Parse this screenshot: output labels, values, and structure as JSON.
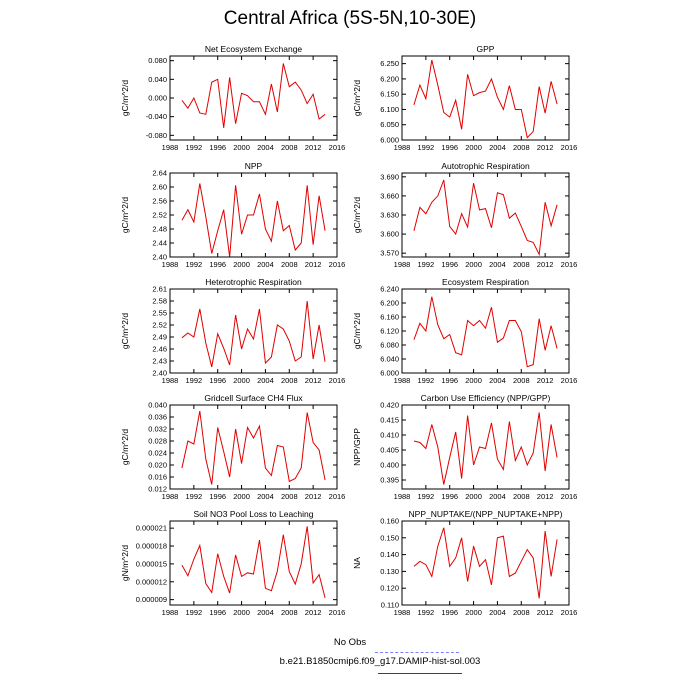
{
  "title": "Central Africa (5S-5N,10-30E)",
  "colors": {
    "model": "#e00000",
    "obs": "#8080ff"
  },
  "legend": [
    {
      "label": "No Obs",
      "color": "#8080ff",
      "style": "dashed"
    },
    {
      "label": "b.e21.B1850cmip6.f09_g17.DAMIP-hist-sol.003",
      "color": "#e00000",
      "style": "solid"
    }
  ],
  "chart_data": [
    {
      "type": "line",
      "title": "Net Ecosystem Exchange",
      "ylabel": "gC/m^2/d",
      "xlim": [
        1988,
        2016
      ],
      "ylim": [
        -0.09,
        0.09
      ],
      "xticks": [
        "1988",
        "1992",
        "1996",
        "2000",
        "2004",
        "2008",
        "2012",
        "2016"
      ],
      "yticks": [
        "-0.080",
        "-0.040",
        "0.000",
        "0.040",
        "0.080"
      ],
      "x": [
        1990,
        1991,
        1992,
        1993,
        1994,
        1995,
        1996,
        1997,
        1998,
        1999,
        2000,
        2001,
        2002,
        2003,
        2004,
        2005,
        2006,
        2007,
        2008,
        2009,
        2010,
        2011,
        2012,
        2013,
        2014
      ],
      "series": [
        {
          "values": [
            -0.005,
            -0.022,
            0.0,
            -0.032,
            -0.035,
            0.034,
            0.04,
            -0.064,
            0.044,
            -0.055,
            0.01,
            0.005,
            -0.008,
            -0.008,
            -0.035,
            0.03,
            -0.03,
            0.074,
            0.024,
            0.034,
            0.017,
            -0.012,
            0.008,
            -0.045,
            -0.035
          ]
        }
      ]
    },
    {
      "type": "line",
      "title": "GPP",
      "ylabel": "gC/m^2/d",
      "xlim": [
        1988,
        2016
      ],
      "ylim": [
        6.0,
        6.275
      ],
      "xticks": [
        "1988",
        "1992",
        "1996",
        "2000",
        "2004",
        "2008",
        "2012",
        "2016"
      ],
      "yticks": [
        "6.000",
        "6.050",
        "6.100",
        "6.150",
        "6.200",
        "6.250"
      ],
      "x": [
        1990,
        1991,
        1992,
        1993,
        1994,
        1995,
        1996,
        1997,
        1998,
        1999,
        2000,
        2001,
        2002,
        2003,
        2004,
        2005,
        2006,
        2007,
        2008,
        2009,
        2010,
        2011,
        2012,
        2013,
        2014
      ],
      "series": [
        {
          "values": [
            6.115,
            6.18,
            6.135,
            6.262,
            6.18,
            6.09,
            6.075,
            6.13,
            6.035,
            6.215,
            6.145,
            6.155,
            6.16,
            6.2,
            6.14,
            6.1,
            6.178,
            6.1,
            6.1,
            6.008,
            6.028,
            6.175,
            6.088,
            6.192,
            6.118
          ]
        }
      ]
    },
    {
      "type": "line",
      "title": "NPP",
      "ylabel": "gC/m^2/d",
      "xlim": [
        1988,
        2016
      ],
      "ylim": [
        2.4,
        2.64
      ],
      "xticks": [
        "1988",
        "1992",
        "1996",
        "2000",
        "2004",
        "2008",
        "2012",
        "2016"
      ],
      "yticks": [
        "2.40",
        "2.44",
        "2.48",
        "2.52",
        "2.56",
        "2.60",
        "2.64"
      ],
      "x": [
        1990,
        1991,
        1992,
        1993,
        1994,
        1995,
        1996,
        1997,
        1998,
        1999,
        2000,
        2001,
        2002,
        2003,
        2004,
        2005,
        2006,
        2007,
        2008,
        2009,
        2010,
        2011,
        2012,
        2013,
        2014
      ],
      "series": [
        {
          "values": [
            2.505,
            2.535,
            2.5,
            2.61,
            2.515,
            2.41,
            2.475,
            2.535,
            2.4,
            2.605,
            2.465,
            2.52,
            2.52,
            2.58,
            2.48,
            2.445,
            2.56,
            2.475,
            2.49,
            2.42,
            2.44,
            2.605,
            2.435,
            2.575,
            2.475
          ]
        }
      ]
    },
    {
      "type": "line",
      "title": "Autotrophic Respiration",
      "ylabel": "gC/m^2/d",
      "xlim": [
        1988,
        2016
      ],
      "ylim": [
        3.564,
        3.696
      ],
      "xticks": [
        "1988",
        "1992",
        "1996",
        "2000",
        "2004",
        "2008",
        "2012",
        "2016"
      ],
      "yticks": [
        "3.570",
        "3.600",
        "3.630",
        "3.660",
        "3.690"
      ],
      "x": [
        1990,
        1991,
        1992,
        1993,
        1994,
        1995,
        1996,
        1997,
        1998,
        1999,
        2000,
        2001,
        2002,
        2003,
        2004,
        2005,
        2006,
        2007,
        2008,
        2009,
        2010,
        2011,
        2012,
        2013,
        2014
      ],
      "series": [
        {
          "values": [
            3.605,
            3.642,
            3.632,
            3.65,
            3.66,
            3.685,
            3.612,
            3.6,
            3.632,
            3.611,
            3.68,
            3.638,
            3.64,
            3.61,
            3.665,
            3.662,
            3.625,
            3.633,
            3.612,
            3.59,
            3.587,
            3.568,
            3.65,
            3.613,
            3.646
          ]
        }
      ]
    },
    {
      "type": "line",
      "title": "Heterotrophic Respiration",
      "ylabel": "gC/m^2/d",
      "xlim": [
        1988,
        2016
      ],
      "ylim": [
        2.4,
        2.61
      ],
      "xticks": [
        "1988",
        "1992",
        "1996",
        "2000",
        "2004",
        "2008",
        "2012",
        "2016"
      ],
      "yticks": [
        "2.40",
        "2.43",
        "2.46",
        "2.49",
        "2.52",
        "2.55",
        "2.58",
        "2.61"
      ],
      "x": [
        1990,
        1991,
        1992,
        1993,
        1994,
        1995,
        1996,
        1997,
        1998,
        1999,
        2000,
        2001,
        2002,
        2003,
        2004,
        2005,
        2006,
        2007,
        2008,
        2009,
        2010,
        2011,
        2012,
        2013,
        2014
      ],
      "series": [
        {
          "values": [
            2.488,
            2.5,
            2.49,
            2.56,
            2.475,
            2.415,
            2.498,
            2.462,
            2.42,
            2.545,
            2.46,
            2.51,
            2.485,
            2.56,
            2.425,
            2.44,
            2.52,
            2.51,
            2.48,
            2.43,
            2.44,
            2.58,
            2.435,
            2.52,
            2.428
          ]
        }
      ]
    },
    {
      "type": "line",
      "title": "Ecosystem Respiration",
      "ylabel": "gC/m^2/d",
      "xlim": [
        1988,
        2016
      ],
      "ylim": [
        6.0,
        6.24
      ],
      "xticks": [
        "1988",
        "1992",
        "1996",
        "2000",
        "2004",
        "2008",
        "2012",
        "2016"
      ],
      "yticks": [
        "6.000",
        "6.040",
        "6.080",
        "6.120",
        "6.160",
        "6.200",
        "6.240"
      ],
      "x": [
        1990,
        1991,
        1992,
        1993,
        1994,
        1995,
        1996,
        1997,
        1998,
        1999,
        2000,
        2001,
        2002,
        2003,
        2004,
        2005,
        2006,
        2007,
        2008,
        2009,
        2010,
        2011,
        2012,
        2013,
        2014
      ],
      "series": [
        {
          "values": [
            6.095,
            6.142,
            6.12,
            6.218,
            6.138,
            6.098,
            6.11,
            6.058,
            6.052,
            6.15,
            6.135,
            6.15,
            6.128,
            6.188,
            6.088,
            6.1,
            6.15,
            6.15,
            6.118,
            6.018,
            6.024,
            6.155,
            6.065,
            6.135,
            6.07
          ]
        }
      ]
    },
    {
      "type": "line",
      "title": "Gridcell Surface CH4 Flux",
      "ylabel": "gC/m^2/d",
      "xlim": [
        1988,
        2016
      ],
      "ylim": [
        0.012,
        0.04
      ],
      "xticks": [
        "1988",
        "1992",
        "1996",
        "2000",
        "2004",
        "2008",
        "2012",
        "2016"
      ],
      "yticks": [
        "0.012",
        "0.016",
        "0.020",
        "0.024",
        "0.028",
        "0.032",
        "0.036",
        "0.040"
      ],
      "x": [
        1990,
        1991,
        1992,
        1993,
        1994,
        1995,
        1996,
        1997,
        1998,
        1999,
        2000,
        2001,
        2002,
        2003,
        2004,
        2005,
        2006,
        2007,
        2008,
        2009,
        2010,
        2011,
        2012,
        2013,
        2014
      ],
      "series": [
        {
          "values": [
            0.019,
            0.028,
            0.027,
            0.038,
            0.022,
            0.0135,
            0.0325,
            0.0245,
            0.016,
            0.032,
            0.0205,
            0.0325,
            0.029,
            0.033,
            0.019,
            0.0165,
            0.0265,
            0.026,
            0.0145,
            0.0155,
            0.019,
            0.0375,
            0.0275,
            0.025,
            0.015
          ]
        }
      ]
    },
    {
      "type": "line",
      "title": "Carbon Use Efficiency (NPP/GPP)",
      "ylabel": "NPP/GPP",
      "xlim": [
        1988,
        2016
      ],
      "ylim": [
        0.392,
        0.42
      ],
      "xticks": [
        "1988",
        "1992",
        "1996",
        "2000",
        "2004",
        "2008",
        "2012",
        "2016"
      ],
      "yticks": [
        "0.395",
        "0.400",
        "0.405",
        "0.410",
        "0.415",
        "0.420"
      ],
      "x": [
        1990,
        1991,
        1992,
        1993,
        1994,
        1995,
        1996,
        1997,
        1998,
        1999,
        2000,
        2001,
        2002,
        2003,
        2004,
        2005,
        2006,
        2007,
        2008,
        2009,
        2010,
        2011,
        2012,
        2013,
        2014
      ],
      "series": [
        {
          "values": [
            0.408,
            0.4075,
            0.4055,
            0.4135,
            0.406,
            0.3935,
            0.4025,
            0.411,
            0.3955,
            0.4165,
            0.4,
            0.406,
            0.4055,
            0.414,
            0.402,
            0.3985,
            0.4145,
            0.4015,
            0.406,
            0.4,
            0.404,
            0.4175,
            0.398,
            0.4135,
            0.4025
          ]
        }
      ]
    },
    {
      "type": "line",
      "title": "Soil NO3 Pool Loss to Leaching",
      "ylabel": "gN/m^2/d",
      "xlim": [
        1988,
        2016
      ],
      "ylim": [
        8.1e-06,
        2.22e-05
      ],
      "xticks": [
        "1988",
        "1992",
        "1996",
        "2000",
        "2004",
        "2008",
        "2012",
        "2016"
      ],
      "yticks": [
        "0.000009",
        "0.000012",
        "0.000015",
        "0.000018",
        "0.000021"
      ],
      "x": [
        1990,
        1991,
        1992,
        1993,
        1994,
        1995,
        1996,
        1997,
        1998,
        1999,
        2000,
        2001,
        2002,
        2003,
        2004,
        2005,
        2006,
        2007,
        2008,
        2009,
        2010,
        2011,
        2012,
        2013,
        2014
      ],
      "series": [
        {
          "values": [
            1.48e-05,
            1.3e-05,
            1.58e-05,
            1.81e-05,
            1.17e-05,
            1.02e-05,
            1.67e-05,
            1.29e-05,
            1.01e-05,
            1.65e-05,
            1.29e-05,
            1.35e-05,
            1.33e-05,
            1.9e-05,
            1.09e-05,
            1.05e-05,
            1.38e-05,
            1.99e-05,
            1.37e-05,
            1.16e-05,
            1.5e-05,
            2.13e-05,
            1.18e-05,
            1.32e-05,
            9.3e-06
          ]
        }
      ]
    },
    {
      "type": "line",
      "title": "NPP_NUPTAKE/(NPP_NUPTAKE+NPP)",
      "ylabel": "NA",
      "xlim": [
        1988,
        2016
      ],
      "ylim": [
        0.11,
        0.16
      ],
      "xticks": [
        "1988",
        "1992",
        "1996",
        "2000",
        "2004",
        "2008",
        "2012",
        "2016"
      ],
      "yticks": [
        "0.110",
        "0.120",
        "0.130",
        "0.140",
        "0.150",
        "0.160"
      ],
      "x": [
        1990,
        1991,
        1992,
        1993,
        1994,
        1995,
        1996,
        1997,
        1998,
        1999,
        2000,
        2001,
        2002,
        2003,
        2004,
        2005,
        2006,
        2007,
        2008,
        2009,
        2010,
        2011,
        2012,
        2013,
        2014
      ],
      "series": [
        {
          "values": [
            0.133,
            0.136,
            0.134,
            0.127,
            0.145,
            0.156,
            0.133,
            0.138,
            0.15,
            0.124,
            0.145,
            0.133,
            0.137,
            0.122,
            0.15,
            0.151,
            0.127,
            0.129,
            0.136,
            0.143,
            0.138,
            0.114,
            0.154,
            0.127,
            0.149
          ]
        }
      ]
    }
  ]
}
